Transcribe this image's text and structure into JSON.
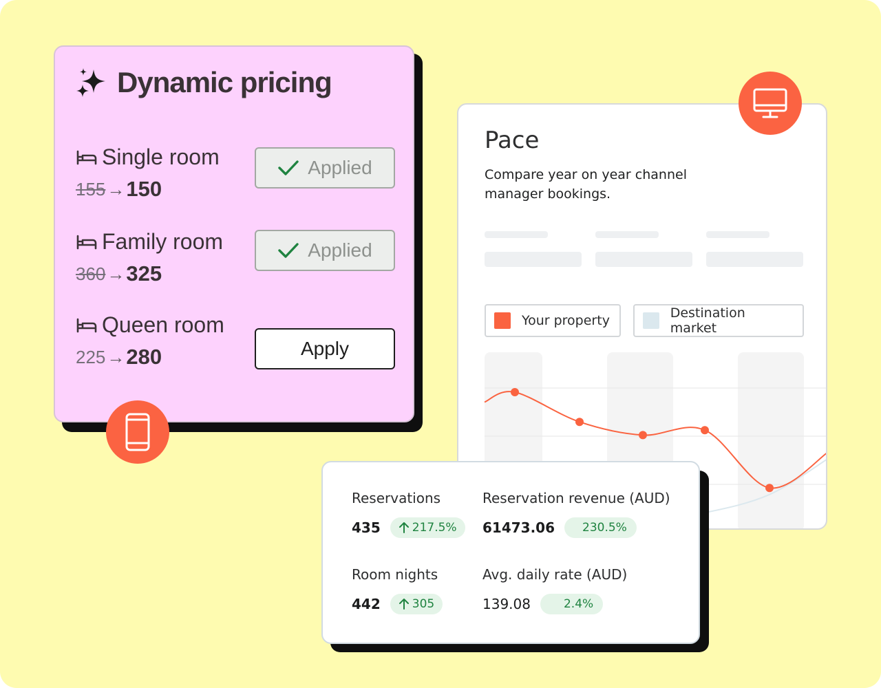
{
  "pricing": {
    "title": "Dynamic pricing",
    "rooms": [
      {
        "name": "Single room",
        "old_price": "155",
        "new_price": "150",
        "button": "Applied",
        "status": "applied"
      },
      {
        "name": "Family room",
        "old_price": "360",
        "new_price": "325",
        "button": "Applied",
        "status": "applied"
      },
      {
        "name": "Queen room",
        "old_price": "225",
        "new_price": "280",
        "button": "Apply",
        "status": "pending"
      }
    ]
  },
  "pace": {
    "title": "Pace",
    "description": "Compare year on year channel manager bookings.",
    "legend": [
      {
        "label": "Your property",
        "color": "#fa6340"
      },
      {
        "label": "Destination market",
        "color": "#dbe8ee"
      }
    ]
  },
  "stats": {
    "reservations": {
      "label": "Reservations",
      "value": "435",
      "change": "217.5%"
    },
    "revenue": {
      "label": "Reservation revenue (AUD)",
      "value": "61473.06",
      "change": "230.5%"
    },
    "room_nights": {
      "label": "Room nights",
      "value": "442",
      "change": "305"
    },
    "adr": {
      "label": "Avg. daily rate (AUD)",
      "value": "139.08",
      "change": "2.4%"
    }
  },
  "chart_data": {
    "type": "line",
    "series": [
      {
        "name": "Your property",
        "color": "#fa6340",
        "points_y": [
          0.8,
          0.62,
          0.54,
          0.57,
          0.22
        ]
      },
      {
        "name": "Destination market",
        "color": "#dbe8ee",
        "points_y": [
          0.05,
          0.08,
          0.02,
          0.07,
          0.18
        ]
      }
    ]
  },
  "icons": {
    "sparkle": "sparkle-icon",
    "bed": "bed-icon",
    "check": "check-icon",
    "mobile": "mobile-phone-icon",
    "desktop": "desktop-monitor-icon",
    "arrow_up": "arrow-up-icon"
  },
  "colors": {
    "background": "#fefbb0",
    "pricing_card": "#fdd2fd",
    "accent": "#fb6342",
    "positive": "#1f8340"
  }
}
